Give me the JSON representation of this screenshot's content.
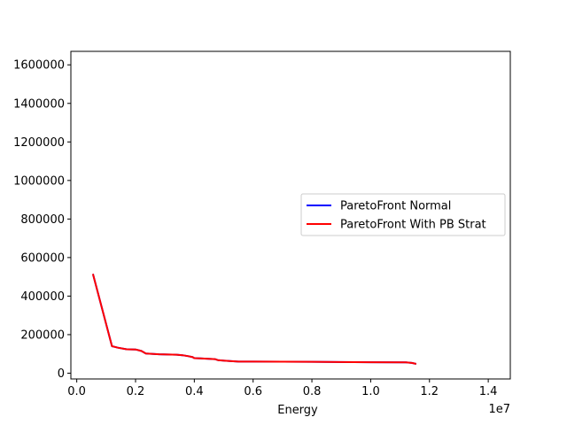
{
  "chart_data": {
    "type": "line",
    "title": "",
    "xlabel": "Energy",
    "ylabel": "",
    "x_offset_label": "1e7",
    "xlim": [
      -0.02,
      1.475
    ],
    "ylim": [
      -30000,
      1670000
    ],
    "x_ticks": [
      0.0,
      0.2,
      0.4,
      0.6,
      0.8,
      1.0,
      1.2,
      1.4
    ],
    "x_tick_labels": [
      "0.0",
      "0.2",
      "0.4",
      "0.6",
      "0.8",
      "1.0",
      "1.2",
      "1.4"
    ],
    "y_ticks": [
      0,
      200000,
      400000,
      600000,
      800000,
      1000000,
      1200000,
      1400000,
      1600000
    ],
    "y_tick_labels": [
      "0",
      "200000",
      "400000",
      "600000",
      "800000",
      "1000000",
      "1200000",
      "1400000",
      "1600000"
    ],
    "grid": false,
    "legend_position": "center-right",
    "series": [
      {
        "name": "ParetoFront Normal",
        "color": "#0000ff",
        "x": [
          0.055,
          0.12,
          0.14,
          0.17,
          0.2,
          0.22,
          0.235,
          0.28,
          0.34,
          0.36,
          0.38,
          0.395,
          0.4,
          0.42,
          0.47,
          0.48,
          0.52,
          0.55,
          0.6,
          0.8,
          1.0,
          1.12,
          1.14,
          1.155
        ],
        "y": [
          515000,
          140000,
          132000,
          124000,
          123000,
          115000,
          102000,
          98000,
          96000,
          93000,
          88000,
          83000,
          78000,
          77000,
          73000,
          68000,
          63000,
          60000,
          60000,
          59000,
          57000,
          56000,
          53000,
          48000
        ]
      },
      {
        "name": "ParetoFront With PB Strat",
        "color": "#ff0000",
        "x": [
          0.055,
          0.12,
          0.14,
          0.17,
          0.2,
          0.22,
          0.235,
          0.28,
          0.34,
          0.36,
          0.38,
          0.395,
          0.4,
          0.42,
          0.47,
          0.48,
          0.52,
          0.55,
          0.6,
          0.8,
          1.0,
          1.12,
          1.14,
          1.155
        ],
        "y": [
          515000,
          140000,
          132000,
          124000,
          123000,
          115000,
          102000,
          98000,
          96000,
          93000,
          88000,
          83000,
          78000,
          77000,
          73000,
          68000,
          63000,
          60000,
          60000,
          59000,
          57000,
          56000,
          53000,
          48000
        ]
      }
    ]
  }
}
